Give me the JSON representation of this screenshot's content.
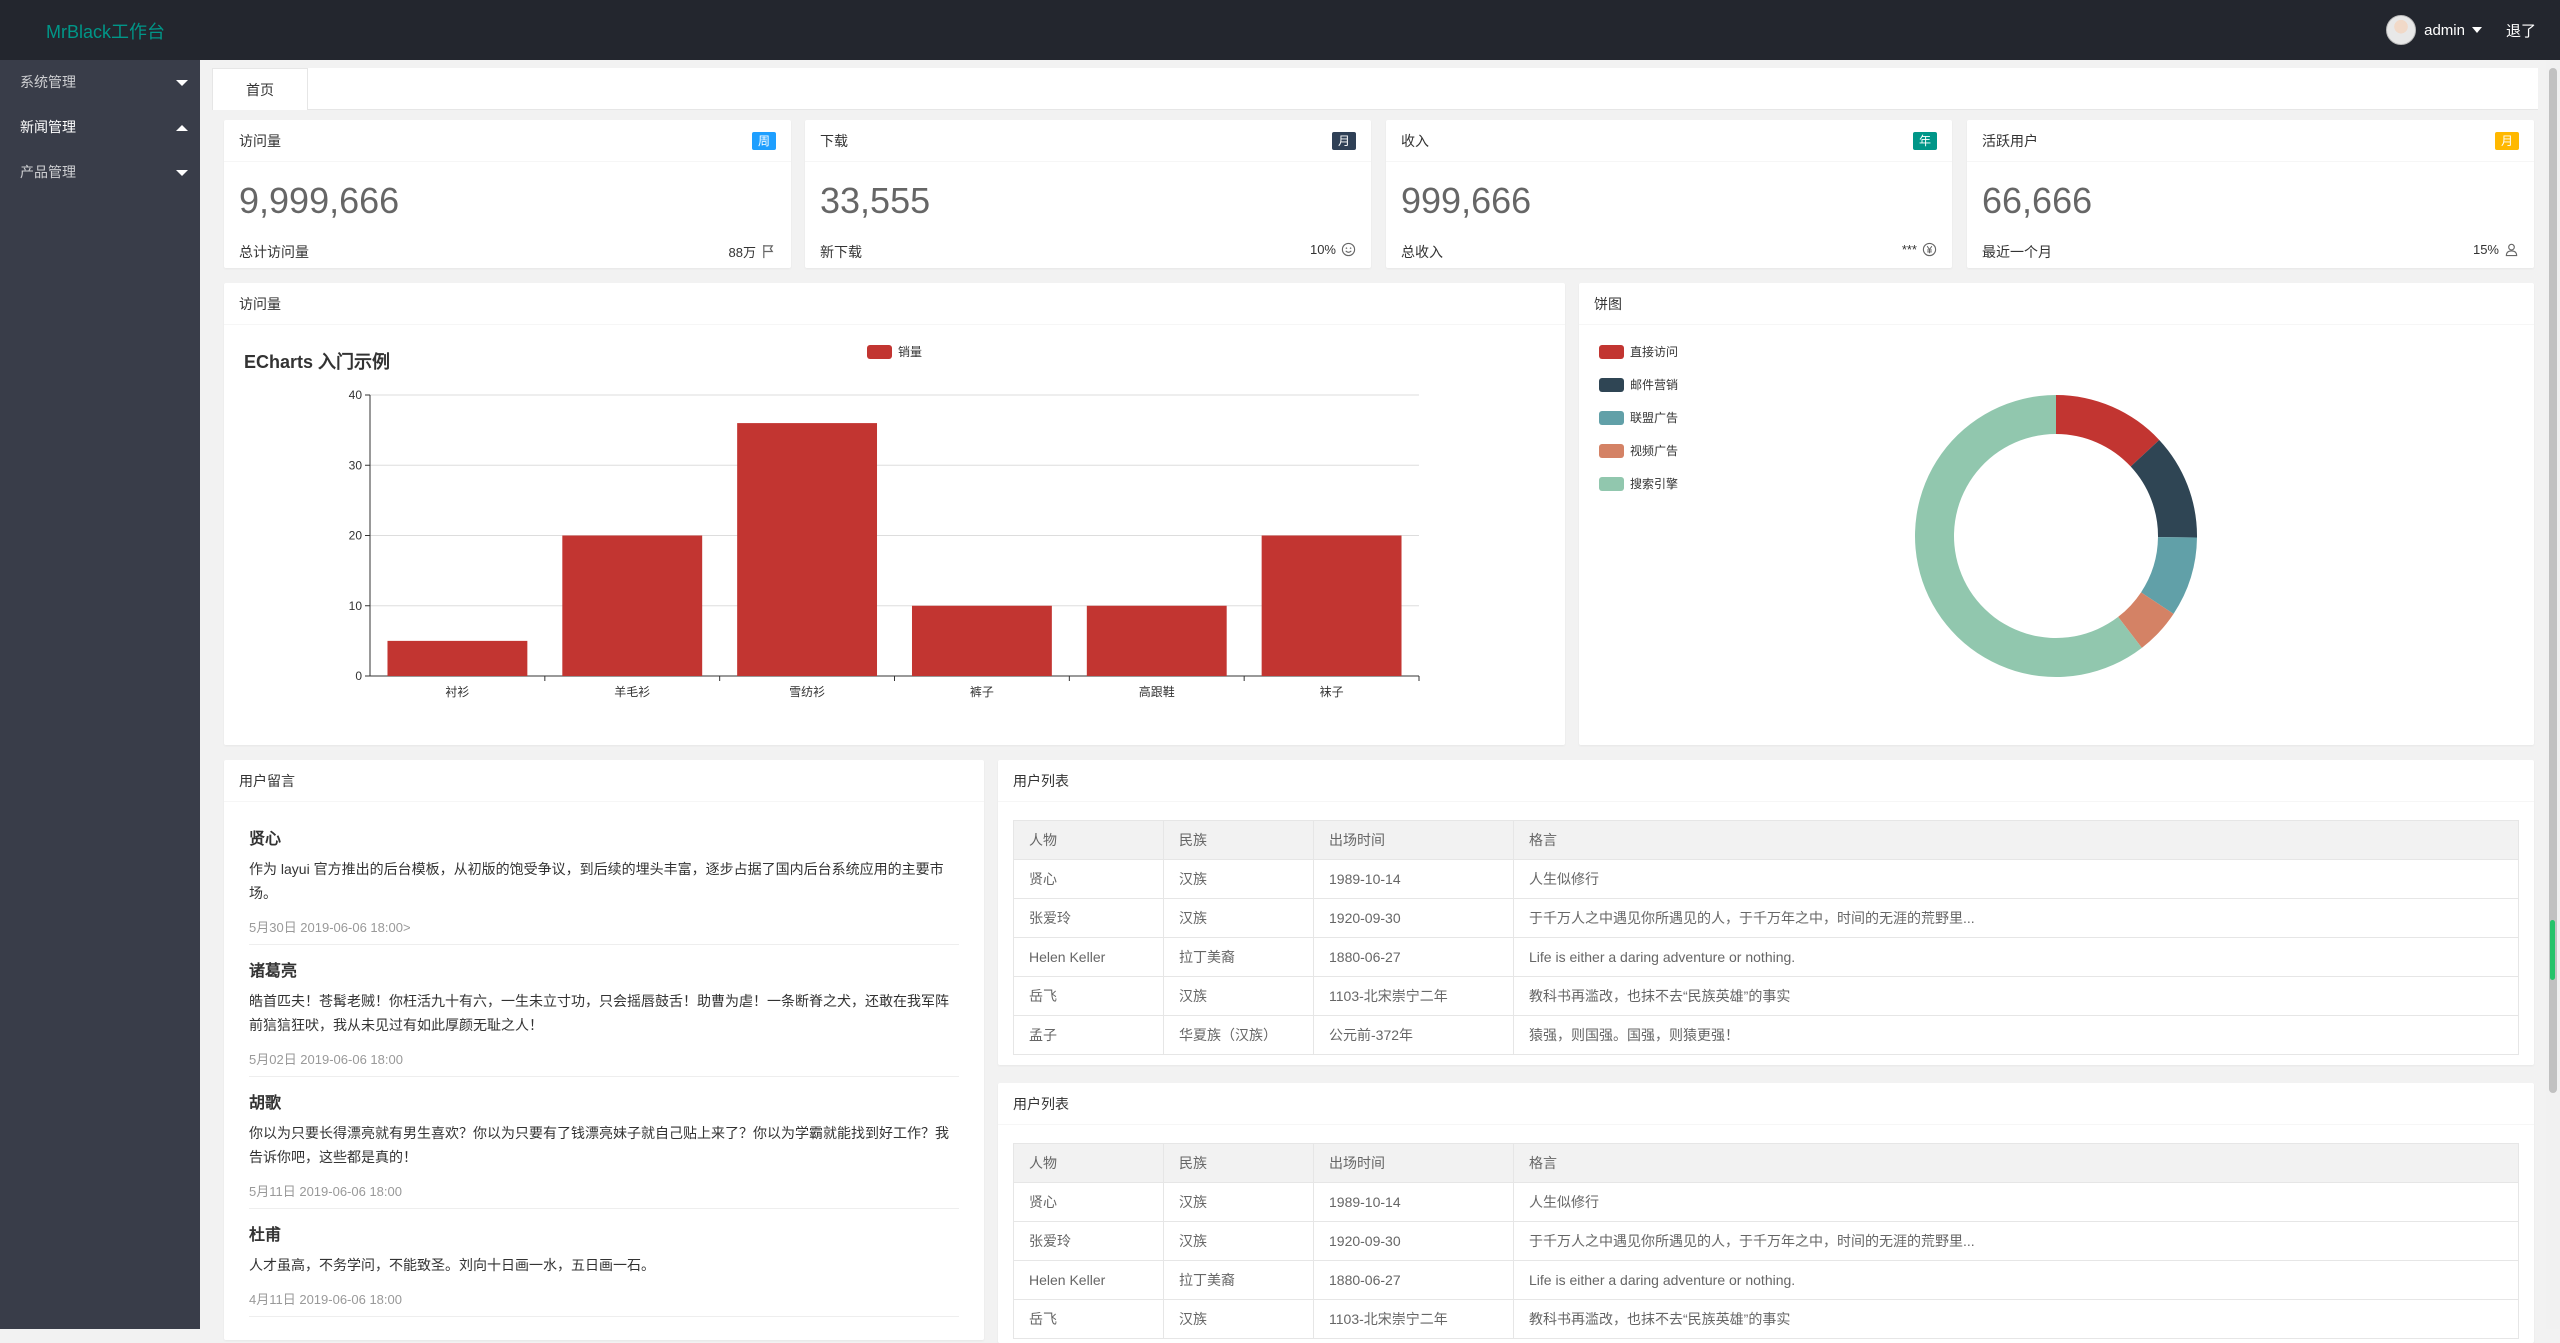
{
  "header": {
    "logo": "MrBlack工作台",
    "username": "admin",
    "logout": "退了"
  },
  "sidebar": {
    "items": [
      {
        "label": "系统管理",
        "expanded": false
      },
      {
        "label": "新闻管理",
        "expanded": true
      },
      {
        "label": "产品管理",
        "expanded": false
      }
    ]
  },
  "tabs": [
    {
      "label": "首页"
    }
  ],
  "stats": [
    {
      "title": "访问量",
      "badge": "周",
      "badge_color": "#1E9FFF",
      "value": "9,999,666",
      "label": "总计访问量",
      "extra": "88万",
      "icon": "flag-icon"
    },
    {
      "title": "下载",
      "badge": "月",
      "badge_color": "#2F4056",
      "value": "33,555",
      "label": "新下载",
      "extra": "10%",
      "icon": "smile-icon"
    },
    {
      "title": "收入",
      "badge": "年",
      "badge_color": "#009688",
      "value": "999,666",
      "label": "总收入",
      "extra": "***",
      "icon": "rmb-icon"
    },
    {
      "title": "活跃用户",
      "badge": "月",
      "badge_color": "#FFB800",
      "value": "66,666",
      "label": "最近一个月",
      "extra": "15%",
      "icon": "user-icon"
    }
  ],
  "bar_panel": {
    "title": "访问量"
  },
  "pie_panel": {
    "title": "饼图"
  },
  "chart_data": [
    {
      "type": "bar",
      "title": "ECharts 入门示例",
      "categories": [
        "衬衫",
        "羊毛衫",
        "雪纺衫",
        "裤子",
        "高跟鞋",
        "袜子"
      ],
      "series": [
        {
          "name": "销量",
          "values": [
            5,
            20,
            36,
            10,
            10,
            20
          ],
          "color": "#c23531"
        }
      ],
      "ylim": [
        0,
        40
      ],
      "yticks": [
        0,
        10,
        20,
        30,
        40
      ],
      "legend_position": "top-center",
      "grid": true
    },
    {
      "type": "pie",
      "donut": true,
      "labels": [
        "直接访问",
        "邮件营销",
        "联盟广告",
        "视频广告",
        "搜索引擎"
      ],
      "values": [
        335,
        310,
        234,
        135,
        1548
      ],
      "colors": [
        "#c23531",
        "#2f4554",
        "#61a0a8",
        "#d48265",
        "#91c7ae"
      ],
      "legend_position": "top-left"
    }
  ],
  "messages_panel": {
    "title": "用户留言"
  },
  "messages": [
    {
      "name": "贤心",
      "text": "作为 layui 官方推出的后台模板，从初版的饱受争议，到后续的埋头丰富，逐步占据了国内后台系统应用的主要市场。",
      "time": "5月30日 2019-06-06 18:00>"
    },
    {
      "name": "诸葛亮",
      "text": "皓首匹夫！苍髯老贼！你枉活九十有六，一生未立寸功，只会摇唇鼓舌！助曹为虐！一条断脊之犬，还敢在我军阵前狺狺狂吠，我从未见过有如此厚颜无耻之人！",
      "time": "5月02日 2019-06-06 18:00"
    },
    {
      "name": "胡歌",
      "text": "你以为只要长得漂亮就有男生喜欢？你以为只要有了钱漂亮妹子就自己贴上来了？你以为学霸就能找到好工作？我告诉你吧，这些都是真的！",
      "time": "5月11日 2019-06-06 18:00"
    },
    {
      "name": "杜甫",
      "text": "人才虽高，不务学问，不能致圣。刘向十日画一水，五日画一石。",
      "time": "4月11日 2019-06-06 18:00"
    }
  ],
  "user_tables": [
    {
      "title": "用户列表",
      "columns": [
        "人物",
        "民族",
        "出场时间",
        "格言"
      ],
      "rows": [
        [
          "贤心",
          "汉族",
          "1989-10-14",
          "人生似修行"
        ],
        [
          "张爱玲",
          "汉族",
          "1920-09-30",
          "于千万人之中遇见你所遇见的人，于千万年之中，时间的无涯的荒野里..."
        ],
        [
          "Helen Keller",
          "拉丁美裔",
          "1880-06-27",
          "Life is either a daring adventure or nothing."
        ],
        [
          "岳飞",
          "汉族",
          "1103-北宋崇宁二年",
          "教科书再滥改，也抹不去“民族英雄”的事实"
        ],
        [
          "孟子",
          "华夏族（汉族）",
          "公元前-372年",
          "猿强，则国强。国强，则猿更强！"
        ]
      ]
    },
    {
      "title": "用户列表",
      "columns": [
        "人物",
        "民族",
        "出场时间",
        "格言"
      ],
      "rows": [
        [
          "贤心",
          "汉族",
          "1989-10-14",
          "人生似修行"
        ],
        [
          "张爱玲",
          "汉族",
          "1920-09-30",
          "于千万人之中遇见你所遇见的人，于千万年之中，时间的无涯的荒野里..."
        ],
        [
          "Helen Keller",
          "拉丁美裔",
          "1880-06-27",
          "Life is either a daring adventure or nothing."
        ],
        [
          "岳飞",
          "汉族",
          "1103-北宋崇宁二年",
          "教科书再滥改，也抹不去“民族英雄”的事实"
        ]
      ]
    }
  ]
}
